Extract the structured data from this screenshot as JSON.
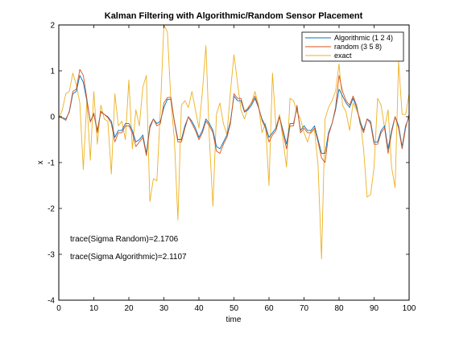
{
  "chart_data": {
    "type": "line",
    "title": "Kalman Filtering with Algorithmic/Random Sensor Placement",
    "xlabel": "time",
    "ylabel": "x",
    "xlim": [
      0,
      100
    ],
    "ylim": [
      -4,
      2
    ],
    "xticks": [
      "0",
      "10",
      "20",
      "30",
      "40",
      "50",
      "60",
      "70",
      "80",
      "90",
      "100"
    ],
    "yticks": [
      "-4",
      "-3",
      "-2",
      "-1",
      "0",
      "1",
      "2"
    ],
    "grid": false,
    "legend_position": "top-right",
    "annotations": [
      {
        "text": "trace(Sigma Random)=2.1706",
        "x": 3,
        "y": -2.65
      },
      {
        "text": "trace(Sigma Algorithmic)=2.1107",
        "x": 3,
        "y": -3.05
      }
    ],
    "series": [
      {
        "name": "Algorithmic (1  2  4)",
        "color": "#0072BD",
        "x": [
          0,
          1,
          2,
          3,
          4,
          5,
          6,
          7,
          8,
          9,
          10,
          11,
          12,
          13,
          14,
          15,
          16,
          17,
          18,
          19,
          20,
          21,
          22,
          23,
          24,
          25,
          26,
          27,
          28,
          29,
          30,
          31,
          32,
          33,
          34,
          35,
          36,
          37,
          38,
          39,
          40,
          41,
          42,
          43,
          44,
          45,
          46,
          47,
          48,
          49,
          50,
          51,
          52,
          53,
          54,
          55,
          56,
          57,
          58,
          59,
          60,
          61,
          62,
          63,
          64,
          65,
          66,
          67,
          68,
          69,
          70,
          71,
          72,
          73,
          74,
          75,
          76,
          77,
          78,
          79,
          80,
          81,
          82,
          83,
          84,
          85,
          86,
          87,
          88,
          89,
          90,
          91,
          92,
          93,
          94,
          95,
          96,
          97,
          98,
          99,
          100
        ],
        "values": [
          0,
          -0.02,
          -0.05,
          0.1,
          0.5,
          0.55,
          0.9,
          0.75,
          0.35,
          -0.1,
          0.05,
          -0.3,
          0.1,
          0.05,
          0,
          -0.1,
          -0.45,
          -0.3,
          -0.3,
          -0.15,
          -0.15,
          -0.3,
          -0.55,
          -0.5,
          -0.4,
          -0.8,
          -0.2,
          -0.05,
          -0.15,
          -0.1,
          0.2,
          0.38,
          0.38,
          -0.1,
          -0.5,
          -0.5,
          -0.2,
          0,
          -0.1,
          -0.25,
          -0.45,
          -0.3,
          -0.05,
          -0.15,
          -0.3,
          -0.65,
          -0.7,
          -0.55,
          -0.4,
          -0.1,
          0.45,
          0.35,
          0.35,
          0.1,
          0.15,
          0.25,
          0.4,
          0.2,
          -0.05,
          -0.2,
          -0.45,
          -0.35,
          -0.25,
          0,
          -0.3,
          -0.6,
          -0.15,
          -0.15,
          0.2,
          -0.3,
          -0.2,
          -0.3,
          -0.3,
          -0.2,
          -0.5,
          -0.8,
          -0.8,
          -0.35,
          -0.15,
          0.15,
          0.6,
          0.45,
          0.3,
          0.2,
          0.4,
          0.2,
          -0.1,
          -0.3,
          -0.05,
          -0.1,
          -0.55,
          -0.55,
          -0.3,
          -0.2,
          -0.7,
          -0.3,
          0,
          -0.2,
          -0.65,
          -0.2,
          0
        ]
      },
      {
        "name": "random (3  5  8)",
        "color": "#D95319",
        "x": [
          0,
          1,
          2,
          3,
          4,
          5,
          6,
          7,
          8,
          9,
          10,
          11,
          12,
          13,
          14,
          15,
          16,
          17,
          18,
          19,
          20,
          21,
          22,
          23,
          24,
          25,
          26,
          27,
          28,
          29,
          30,
          31,
          32,
          33,
          34,
          35,
          36,
          37,
          38,
          39,
          40,
          41,
          42,
          43,
          44,
          45,
          46,
          47,
          48,
          49,
          50,
          51,
          52,
          53,
          54,
          55,
          56,
          57,
          58,
          59,
          60,
          61,
          62,
          63,
          64,
          65,
          66,
          67,
          68,
          69,
          70,
          71,
          72,
          73,
          74,
          75,
          76,
          77,
          78,
          79,
          80,
          81,
          82,
          83,
          84,
          85,
          86,
          87,
          88,
          89,
          90,
          91,
          92,
          93,
          94,
          95,
          96,
          97,
          98,
          99,
          100
        ],
        "values": [
          0,
          -0.03,
          -0.08,
          0.12,
          0.55,
          0.6,
          1.03,
          0.9,
          0.4,
          -0.12,
          0.08,
          -0.35,
          0.12,
          0.05,
          -0.02,
          -0.15,
          -0.55,
          -0.35,
          -0.35,
          -0.2,
          -0.2,
          -0.35,
          -0.65,
          -0.55,
          -0.45,
          -0.85,
          -0.25,
          -0.05,
          -0.2,
          -0.15,
          0.3,
          0.42,
          0.42,
          -0.12,
          -0.55,
          -0.55,
          -0.25,
          0,
          -0.15,
          -0.3,
          -0.5,
          -0.35,
          -0.1,
          -0.2,
          -0.35,
          -0.75,
          -0.8,
          -0.6,
          -0.45,
          -0.15,
          0.5,
          0.4,
          0.4,
          0.12,
          0.18,
          0.3,
          0.45,
          0.22,
          -0.08,
          -0.25,
          -0.55,
          -0.4,
          -0.3,
          0,
          -0.35,
          -0.7,
          -0.2,
          -0.2,
          0.25,
          -0.35,
          -0.25,
          -0.35,
          -0.35,
          -0.25,
          -0.55,
          -0.9,
          -1.0,
          -0.4,
          -0.15,
          0.2,
          0.9,
          0.55,
          0.35,
          0.25,
          0.45,
          0.25,
          -0.15,
          -0.35,
          -0.05,
          -0.15,
          -0.6,
          -0.6,
          -0.35,
          -0.25,
          -0.8,
          -0.35,
          0,
          -0.25,
          -0.7,
          -0.25,
          0.05
        ]
      },
      {
        "name": "exact",
        "color": "#EDB120",
        "x": [
          0,
          1,
          2,
          3,
          4,
          5,
          6,
          7,
          8,
          9,
          10,
          11,
          12,
          13,
          14,
          15,
          16,
          17,
          18,
          19,
          20,
          21,
          22,
          23,
          24,
          25,
          26,
          27,
          28,
          29,
          30,
          31,
          32,
          33,
          34,
          35,
          36,
          37,
          38,
          39,
          40,
          41,
          42,
          43,
          44,
          45,
          46,
          47,
          48,
          49,
          50,
          51,
          52,
          53,
          54,
          55,
          56,
          57,
          58,
          59,
          60,
          61,
          62,
          63,
          64,
          65,
          66,
          67,
          68,
          69,
          70,
          71,
          72,
          73,
          74,
          75,
          76,
          77,
          78,
          79,
          80,
          81,
          82,
          83,
          84,
          85,
          86,
          87,
          88,
          89,
          90,
          91,
          92,
          93,
          94,
          95,
          96,
          97,
          98,
          99,
          100
        ],
        "values": [
          -0.05,
          0.15,
          0.5,
          0.55,
          0.95,
          0.7,
          0.3,
          -1.15,
          0.35,
          -0.95,
          0.55,
          -0.6,
          0.25,
          -0.05,
          -0.1,
          -1.25,
          0.5,
          -0.2,
          -0.1,
          -0.5,
          0.8,
          -0.7,
          0.15,
          -0.2,
          0.65,
          0.9,
          -1.85,
          -1.35,
          -1.4,
          0.15,
          2.0,
          1.85,
          0.35,
          -0.5,
          -2.25,
          0.25,
          0.35,
          0.2,
          0.55,
          0.15,
          -0.25,
          0.55,
          1.55,
          -0.5,
          -1.95,
          0.05,
          0.3,
          -0.15,
          -0.4,
          0.55,
          1.35,
          0.75,
          0.15,
          -0.05,
          0.2,
          0.3,
          0.55,
          0.25,
          -0.35,
          -0.15,
          -1.5,
          0.95,
          -0.25,
          0.05,
          -0.5,
          -1.1,
          0.4,
          0.35,
          0.1,
          -0.05,
          -0.35,
          -0.55,
          -0.3,
          -0.3,
          -1.05,
          -3.1,
          -0.05,
          0.2,
          0.35,
          0.55,
          1.15,
          0.25,
          0.1,
          -0.3,
          0.3,
          0.15,
          -0.05,
          -0.7,
          -1.75,
          -1.7,
          -1.1,
          0.4,
          0.25,
          -0.25,
          0.15,
          -1.1,
          -1.55,
          1.2,
          0.05,
          0.05,
          0.5
        ]
      }
    ]
  }
}
